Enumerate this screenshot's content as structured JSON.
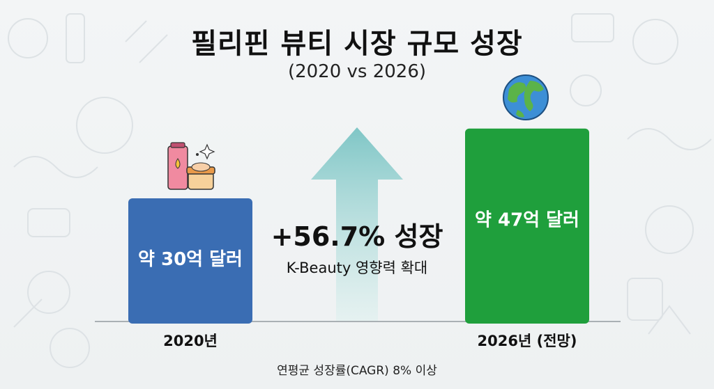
{
  "title": "필리핀 뷰티 시장 규모 성장",
  "subtitle": "(2020 vs 2026)",
  "footnote": "연평균 성장률(CAGR) 8% 이상",
  "growth": {
    "percent_label": "+56.7% 성장",
    "sub_label": "K-Beauty 영향력 확대"
  },
  "chart_data": {
    "type": "bar",
    "title": "필리핀 뷰티 시장 규모 성장",
    "subtitle": "(2020 vs 2026)",
    "categories": [
      "2020년",
      "2026년 (전망)"
    ],
    "values": [
      30,
      47
    ],
    "unit": "억 달러",
    "data_labels": [
      "약 30억 달러",
      "약 47억 달러"
    ],
    "colors": [
      "#3a6db3",
      "#1f9f3c"
    ],
    "ylim": [
      0,
      50
    ],
    "grid": false,
    "annotation": "+56.7% 성장"
  },
  "icons": {
    "bar1_icon": "cosmetics-tube-and-jar-icon",
    "bar2_icon": "globe-icon",
    "arrow": "up-arrow-icon"
  },
  "colors": {
    "arrow_top": "#7fc6c6",
    "arrow_bottom": "#dff1ef"
  }
}
